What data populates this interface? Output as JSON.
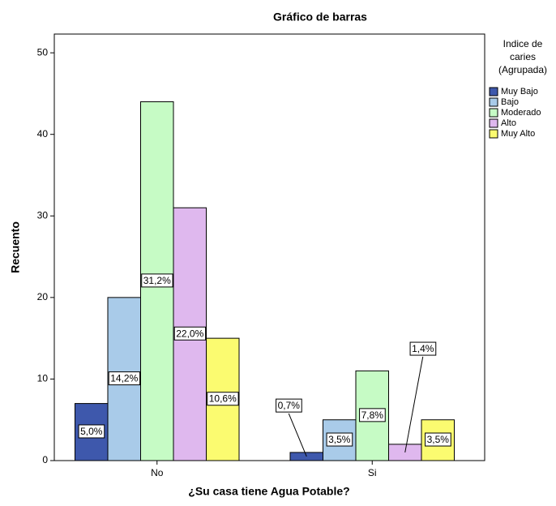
{
  "chart_data": {
    "type": "bar",
    "title": "Gráfico de barras",
    "x_label": "¿Su casa tiene Agua Potable?",
    "y_label": "Recuento",
    "categories": [
      "No",
      "Si"
    ],
    "legend_title": [
      "Indice de",
      "caries",
      "(Agrupada)"
    ],
    "series": [
      {
        "name": "Muy Bajo",
        "color": "#3e58ac",
        "values": [
          7,
          1
        ],
        "value_labels": [
          "5,0%",
          "0,7%"
        ]
      },
      {
        "name": "Bajo",
        "color": "#a9cbe9",
        "values": [
          20,
          5
        ],
        "value_labels": [
          "14,2%",
          "3,5%"
        ]
      },
      {
        "name": "Moderado",
        "color": "#c6fbc5",
        "values": [
          44,
          11
        ],
        "value_labels": [
          "31,2%",
          "7,8%"
        ]
      },
      {
        "name": "Alto",
        "color": "#dfb8ee",
        "values": [
          31,
          2
        ],
        "value_labels": [
          "22,0%",
          "1,4%"
        ]
      },
      {
        "name": "Muy Alto",
        "color": "#fbfb70",
        "values": [
          15,
          5
        ],
        "value_labels": [
          "10,6%",
          "3,5%"
        ]
      }
    ],
    "ylim": [
      0,
      52.3
    ],
    "yticks": [
      0,
      10,
      20,
      30,
      40,
      50
    ],
    "grid": false,
    "legend": "right"
  }
}
